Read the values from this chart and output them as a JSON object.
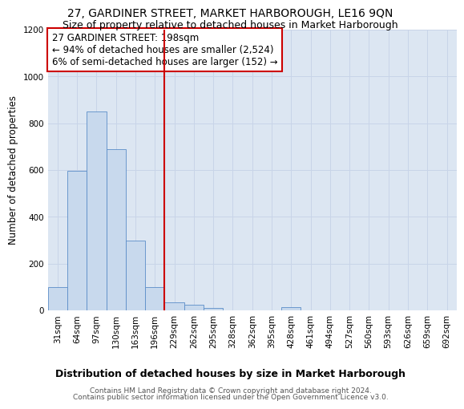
{
  "title": "27, GARDINER STREET, MARKET HARBOROUGH, LE16 9QN",
  "subtitle": "Size of property relative to detached houses in Market Harborough",
  "xlabel": "Distribution of detached houses by size in Market Harborough",
  "ylabel": "Number of detached properties",
  "footer_line1": "Contains HM Land Registry data © Crown copyright and database right 2024.",
  "footer_line2": "Contains public sector information licensed under the Open Government Licence v3.0.",
  "categories": [
    "31sqm",
    "64sqm",
    "97sqm",
    "130sqm",
    "163sqm",
    "196sqm",
    "229sqm",
    "262sqm",
    "295sqm",
    "328sqm",
    "362sqm",
    "395sqm",
    "428sqm",
    "461sqm",
    "494sqm",
    "527sqm",
    "560sqm",
    "593sqm",
    "626sqm",
    "659sqm",
    "692sqm"
  ],
  "values": [
    100,
    598,
    850,
    688,
    300,
    100,
    33,
    23,
    10,
    0,
    0,
    0,
    13,
    0,
    0,
    0,
    0,
    0,
    0,
    0,
    0
  ],
  "bar_color": "#c8d9ed",
  "bar_edge_color": "#5b8dc8",
  "grid_color": "#c8d4e8",
  "bg_color": "#dce6f2",
  "vline_color": "#cc0000",
  "vline_index": 5,
  "annotation_text": "27 GARDINER STREET: 198sqm\n← 94% of detached houses are smaller (2,524)\n6% of semi-detached houses are larger (152) →",
  "annotation_box_edge_color": "#cc0000",
  "ylim": [
    0,
    1200
  ],
  "yticks": [
    0,
    200,
    400,
    600,
    800,
    1000,
    1200
  ],
  "title_fontsize": 10,
  "subtitle_fontsize": 9,
  "xlabel_fontsize": 9,
  "ylabel_fontsize": 8.5,
  "tick_fontsize": 7.5,
  "annotation_fontsize": 8.5,
  "footer_fontsize": 6.5
}
